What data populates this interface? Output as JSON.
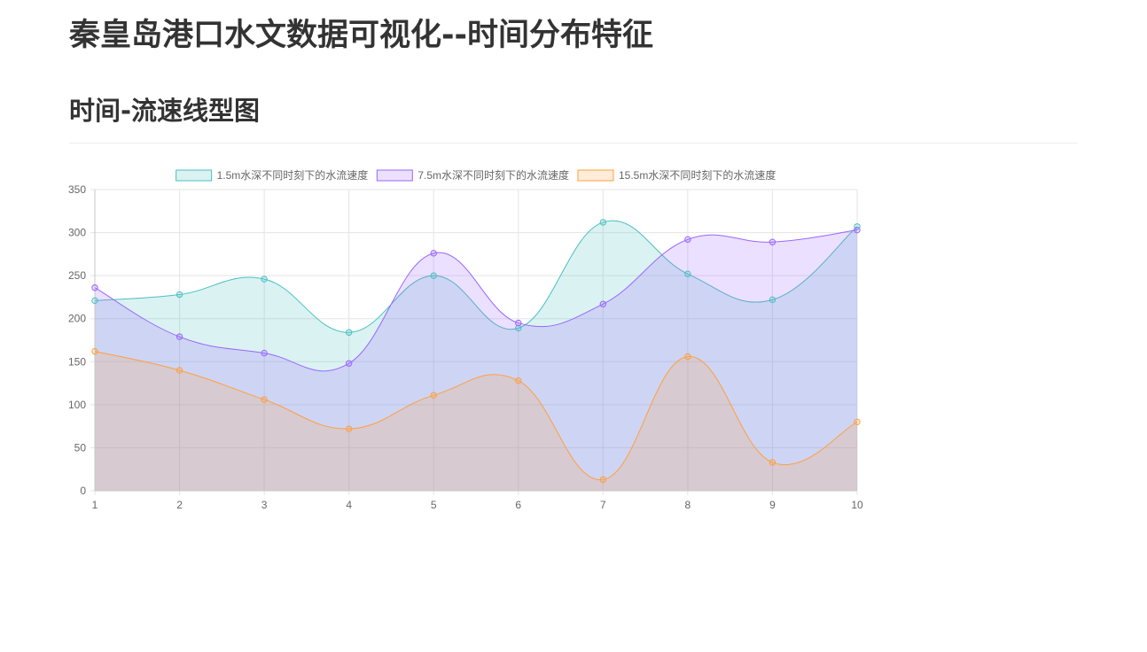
{
  "page": {
    "title": "秦皇岛港口水文数据可视化--时间分布特征",
    "section_title": "时间-流速线型图"
  },
  "colors": {
    "series": [
      {
        "stroke": "#4bc0c0",
        "fill": "rgba(75,192,192,0.2)"
      },
      {
        "stroke": "#9966ff",
        "fill": "rgba(153,102,255,0.2)"
      },
      {
        "stroke": "#ff9f40",
        "fill": "rgba(255,159,64,0.2)"
      }
    ],
    "grid": "#e5e5e5",
    "axis": "#c8c8c8",
    "tick_text": "#666666"
  },
  "chart_data": {
    "type": "area",
    "title": "",
    "xlabel": "",
    "ylabel": "",
    "x": [
      1,
      2,
      3,
      4,
      5,
      6,
      7,
      8,
      9,
      10
    ],
    "ylim": [
      0,
      350
    ],
    "yticks": [
      0,
      50,
      100,
      150,
      200,
      250,
      300,
      350
    ],
    "grid": true,
    "legend": "top",
    "series": [
      {
        "name": "1.5m水深不同时刻下的水流速度",
        "values": [
          221,
          228,
          246,
          184,
          250,
          189,
          312,
          252,
          222,
          307
        ]
      },
      {
        "name": "7.5m水深不同时刻下的水流速度",
        "values": [
          236,
          179,
          160,
          148,
          276,
          195,
          217,
          292,
          289,
          303
        ]
      },
      {
        "name": "15.5m水深不同时刻下的水流速度",
        "values": [
          162,
          140,
          106,
          72,
          111,
          128,
          13,
          156,
          33,
          80
        ]
      }
    ]
  }
}
